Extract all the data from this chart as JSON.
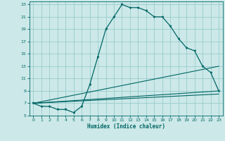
{
  "title": "",
  "xlabel": "Humidex (Indice chaleur)",
  "bg_color": "#cce8e8",
  "grid_color": "#99cccc",
  "line_color": "#006666",
  "xlim": [
    -0.5,
    23.5
  ],
  "ylim": [
    5,
    23.5
  ],
  "xticks": [
    0,
    1,
    2,
    3,
    4,
    5,
    6,
    7,
    8,
    9,
    10,
    11,
    12,
    13,
    14,
    15,
    16,
    17,
    18,
    19,
    20,
    21,
    22,
    23
  ],
  "yticks": [
    5,
    7,
    9,
    11,
    13,
    15,
    17,
    19,
    21,
    23
  ],
  "main_curve_x": [
    0,
    1,
    2,
    3,
    4,
    5,
    6,
    7,
    8,
    9,
    10,
    11,
    12,
    13,
    14,
    15,
    16,
    17,
    18,
    19,
    20,
    21,
    22,
    23
  ],
  "main_curve_y": [
    7,
    6.5,
    6.5,
    6.0,
    6.0,
    5.5,
    6.5,
    10.0,
    14.5,
    19.0,
    21.0,
    23.0,
    22.5,
    22.5,
    22.0,
    21.0,
    21.0,
    19.5,
    17.5,
    16.0,
    15.5,
    13.0,
    12.0,
    9.0
  ],
  "line2_x": [
    0,
    23
  ],
  "line2_y": [
    7,
    8.5
  ],
  "line3_x": [
    0,
    23
  ],
  "line3_y": [
    7,
    13.0
  ],
  "line4_x": [
    0,
    23
  ],
  "line4_y": [
    7,
    9.0
  ]
}
